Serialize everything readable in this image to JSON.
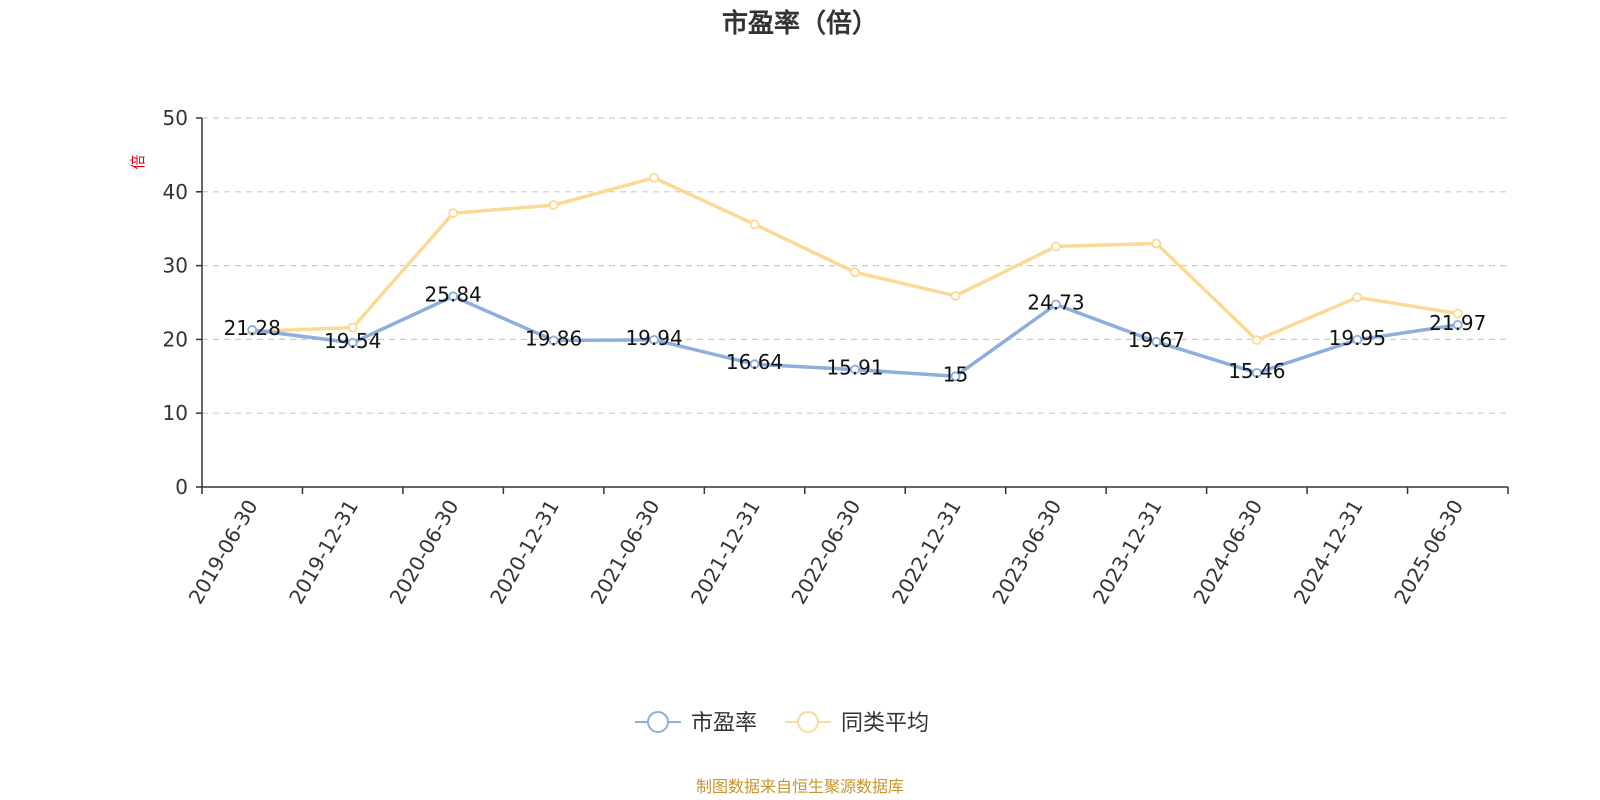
{
  "chart_data": {
    "type": "line",
    "title": "市盈率（倍）",
    "ylabel": "倍",
    "ylim": [
      0,
      50
    ],
    "yticks": [
      0,
      10,
      20,
      30,
      40,
      50
    ],
    "grid": true,
    "legend_position": "bottom",
    "categories": [
      "2019-06-30",
      "2019-12-31",
      "2020-06-30",
      "2020-12-31",
      "2021-06-30",
      "2021-12-31",
      "2022-06-30",
      "2022-12-31",
      "2023-06-30",
      "2023-12-31",
      "2024-06-30",
      "2024-12-31",
      "2025-06-30"
    ],
    "series": [
      {
        "name": "市盈率",
        "color": "#8eaedb",
        "values": [
          21.28,
          19.54,
          25.84,
          19.86,
          19.94,
          16.64,
          15.91,
          15,
          24.73,
          19.67,
          15.46,
          19.95,
          21.97
        ],
        "labels": [
          "21.28",
          "19.54",
          "25.84",
          "19.86",
          "19.94",
          "16.64",
          "15.91",
          "15",
          "24.73",
          "19.67",
          "15.46",
          "19.95",
          "21.97"
        ]
      },
      {
        "name": "同类平均",
        "color": "#fbd996",
        "values": [
          21.1,
          21.6,
          37.1,
          38.2,
          41.9,
          35.6,
          29.1,
          25.9,
          32.6,
          33.0,
          19.9,
          25.7,
          23.5
        ]
      }
    ],
    "source": "制图数据来自恒生聚源数据库"
  }
}
